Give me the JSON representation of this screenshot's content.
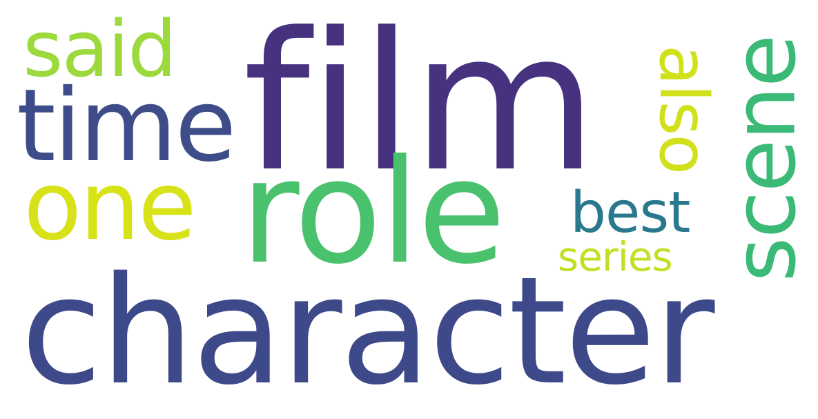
{
  "words": {
    "film": {
      "text": "film",
      "color": "#46327e"
    },
    "character": {
      "text": "character",
      "color": "#3e4989"
    },
    "role": {
      "text": "role",
      "color": "#4ac16d"
    },
    "time": {
      "text": "time",
      "color": "#3e4c8a"
    },
    "one": {
      "text": "one",
      "color": "#d8e219"
    },
    "said": {
      "text": "said",
      "color": "#9bd93c"
    },
    "scene": {
      "text": "scene",
      "color": "#3aba76"
    },
    "also": {
      "text": "also",
      "color": "#d0e11c"
    },
    "best": {
      "text": "best",
      "color": "#2a788e"
    },
    "series": {
      "text": "series",
      "color": "#c2df23"
    }
  }
}
